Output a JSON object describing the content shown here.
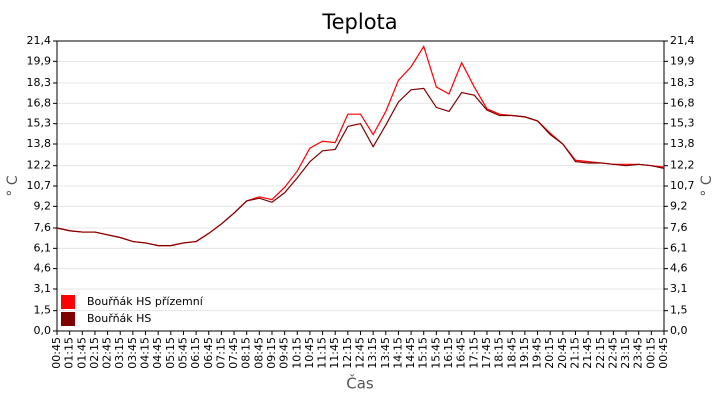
{
  "chart_data": {
    "type": "line",
    "title": "Teplota",
    "x_label": "Čas",
    "y_label": "° C",
    "y2_label": "° C",
    "categories": [
      "00:45",
      "01:15",
      "01:45",
      "02:15",
      "02:45",
      "03:15",
      "03:45",
      "04:15",
      "04:45",
      "05:15",
      "05:45",
      "06:15",
      "06:45",
      "07:15",
      "07:45",
      "08:15",
      "08:45",
      "09:15",
      "09:45",
      "10:15",
      "10:45",
      "11:15",
      "11:45",
      "12:15",
      "12:45",
      "13:15",
      "13:45",
      "14:15",
      "14:45",
      "15:15",
      "15:45",
      "16:15",
      "16:45",
      "17:15",
      "17:45",
      "18:15",
      "18:45",
      "19:15",
      "19:45",
      "20:15",
      "20:45",
      "21:15",
      "21:45",
      "22:15",
      "22:45",
      "23:15",
      "23:45",
      "00:15",
      "00:45"
    ],
    "series": [
      {
        "name": "Bouřňák HS přízemní",
        "color": "#ff0000",
        "values": [
          7.6,
          7.4,
          7.3,
          7.3,
          7.1,
          6.9,
          6.6,
          6.5,
          6.3,
          6.3,
          6.5,
          6.6,
          7.2,
          7.9,
          8.7,
          9.6,
          9.9,
          9.7,
          10.6,
          11.8,
          13.5,
          14.0,
          13.9,
          16.0,
          16.0,
          14.5,
          16.2,
          18.5,
          19.5,
          21.0,
          18.0,
          17.5,
          19.8,
          18.0,
          16.4,
          16.0,
          15.9,
          15.8,
          15.5,
          14.6,
          13.8,
          12.6,
          12.5,
          12.4,
          12.3,
          12.3,
          12.3,
          12.2,
          12.1
        ]
      },
      {
        "name": "Bouřňák HS",
        "color": "#800000",
        "values": [
          7.6,
          7.4,
          7.3,
          7.3,
          7.1,
          6.9,
          6.6,
          6.5,
          6.3,
          6.3,
          6.5,
          6.6,
          7.2,
          7.9,
          8.7,
          9.6,
          9.8,
          9.5,
          10.2,
          11.3,
          12.5,
          13.3,
          13.4,
          15.1,
          15.3,
          13.6,
          15.2,
          16.9,
          17.8,
          17.9,
          16.5,
          16.2,
          17.6,
          17.4,
          16.3,
          15.9,
          15.9,
          15.8,
          15.5,
          14.5,
          13.8,
          12.5,
          12.4,
          12.4,
          12.3,
          12.2,
          12.3,
          12.2,
          12.0
        ]
      }
    ],
    "ylim": [
      0,
      21.4
    ],
    "yticks": [
      {
        "value": 0,
        "label": "0,0"
      },
      {
        "value": 1.5,
        "label": "1,5"
      },
      {
        "value": 3.1,
        "label": "3,1"
      },
      {
        "value": 4.6,
        "label": "4,6"
      },
      {
        "value": 6.1,
        "label": "6,1"
      },
      {
        "value": 7.6,
        "label": "7,6"
      },
      {
        "value": 9.2,
        "label": "9,2"
      },
      {
        "value": 10.7,
        "label": "10,7"
      },
      {
        "value": 12.2,
        "label": "12,2"
      },
      {
        "value": 13.8,
        "label": "13,8"
      },
      {
        "value": 15.3,
        "label": "15,3"
      },
      {
        "value": 16.8,
        "label": "16,8"
      },
      {
        "value": 18.3,
        "label": "18,3"
      },
      {
        "value": 19.9,
        "label": "19,9"
      },
      {
        "value": 21.4,
        "label": "21,4"
      }
    ],
    "y2lim": [
      0,
      21.4
    ],
    "y2ticks": [
      {
        "value": 0,
        "label": "0,0"
      },
      {
        "value": 1.5,
        "label": "1,5"
      },
      {
        "value": 3.1,
        "label": "3,1"
      },
      {
        "value": 4.6,
        "label": "4,6"
      },
      {
        "value": 6.1,
        "label": "6,1"
      },
      {
        "value": 7.6,
        "label": "7,6"
      },
      {
        "value": 9.2,
        "label": "9,2"
      },
      {
        "value": 10.7,
        "label": "10,7"
      },
      {
        "value": 12.2,
        "label": "12,2"
      },
      {
        "value": 13.8,
        "label": "13,8"
      },
      {
        "value": 15.3,
        "label": "15,3"
      },
      {
        "value": 16.8,
        "label": "16,8"
      },
      {
        "value": 18.3,
        "label": "18,3"
      },
      {
        "value": 19.9,
        "label": "19,9"
      },
      {
        "value": 21.4,
        "label": "21,4"
      }
    ],
    "grid": true,
    "legend": "bottom-left"
  }
}
